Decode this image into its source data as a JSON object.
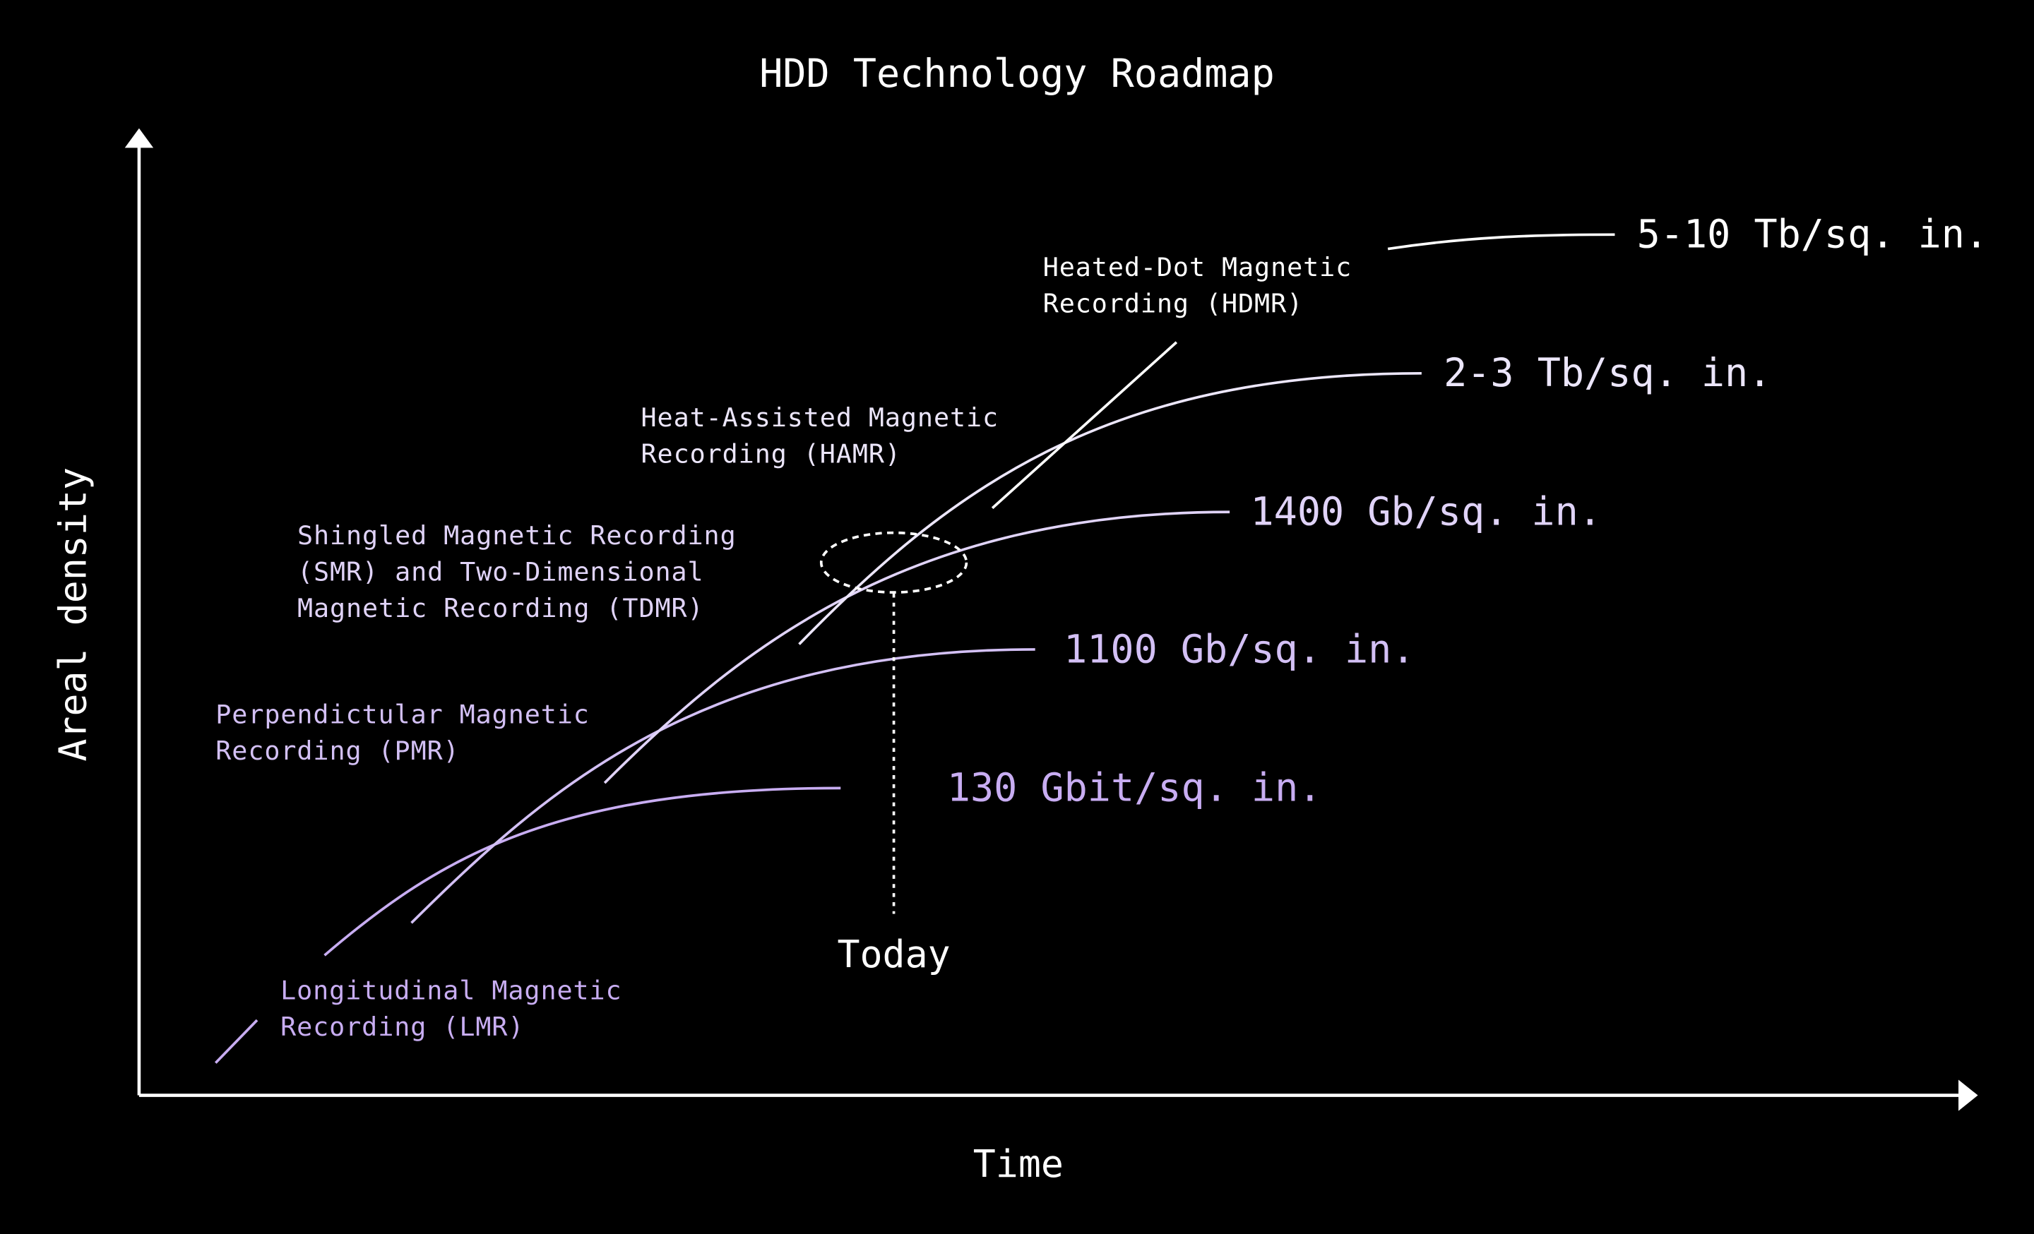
{
  "title": "HDD Technology Roadmap",
  "axes": {
    "y_label": "Areal density",
    "x_label": "Time"
  },
  "today": "Today",
  "technologies": [
    {
      "label": [
        "Longitudinal Magnetic",
        "Recording (LMR)"
      ],
      "density": "130 Gbit/sq. in."
    },
    {
      "label": [
        "Perpendictular Magnetic",
        "Recording (PMR)"
      ],
      "density": "1100 Gb/sq. in."
    },
    {
      "label": [
        "Shingled Magnetic Recording",
        "(SMR) and Two-Dimensional",
        "Magnetic Recording (TDMR)"
      ],
      "density": "1400 Gb/sq. in."
    },
    {
      "label": [
        "Heat-Assisted Magnetic",
        "Recording (HAMR)"
      ],
      "density": "2-3 Tb/sq. in."
    },
    {
      "label": [
        "Heated-Dot Magnetic",
        "Recording (HDMR)"
      ],
      "density": "5-10 Tb/sq. in."
    }
  ]
}
